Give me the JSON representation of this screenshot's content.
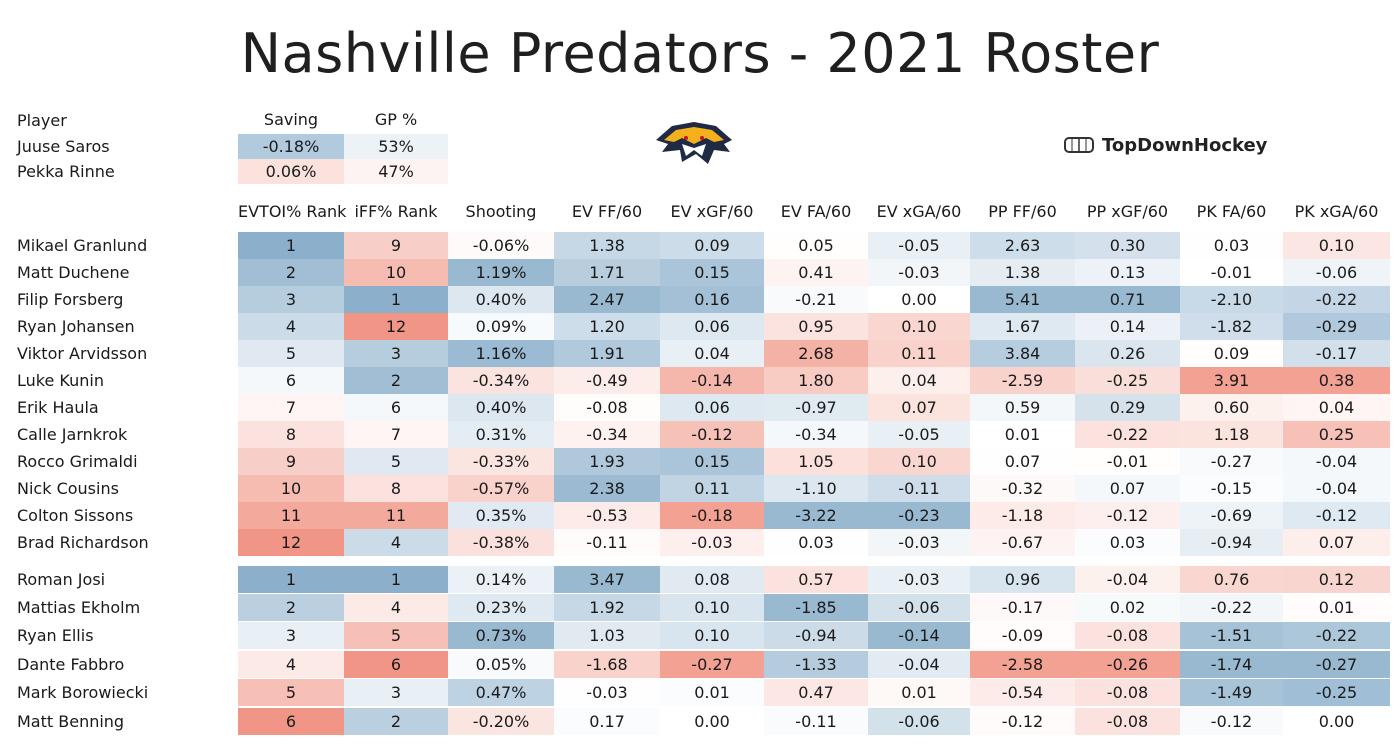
{
  "title": "Nashville Predators - 2021 Roster",
  "brand": "TopDownHockey",
  "logo_icon": "predators-logo-icon",
  "brand_icon": "rink-icon",
  "goalies": {
    "headers": {
      "player": "Player",
      "saving": "Saving",
      "gp": "GP %"
    },
    "rows": [
      {
        "name": "Juuse Saros",
        "saving": "-0.18%",
        "gp": "53%"
      },
      {
        "name": "Pekka Rinne",
        "saving": "0.06%",
        "gp": "47%"
      }
    ]
  },
  "columns": [
    "EVTOI% Rank",
    "iFF% Rank",
    "Shooting",
    "EV FF/60",
    "EV xGF/60",
    "EV FA/60",
    "EV xGA/60",
    "PP FF/60",
    "PP xGF/60",
    "PK FA/60",
    "PK xGA/60"
  ],
  "forwards": [
    {
      "name": "Mikael Granlund",
      "v": [
        "1",
        "9",
        "-0.06%",
        "1.38",
        "0.09",
        "0.05",
        "-0.05",
        "2.63",
        "0.30",
        "0.03",
        "0.10"
      ]
    },
    {
      "name": "Matt Duchene",
      "v": [
        "2",
        "10",
        "1.19%",
        "1.71",
        "0.15",
        "0.41",
        "-0.03",
        "1.38",
        "0.13",
        "-0.01",
        "-0.06"
      ]
    },
    {
      "name": "Filip Forsberg",
      "v": [
        "3",
        "1",
        "0.40%",
        "2.47",
        "0.16",
        "-0.21",
        "0.00",
        "5.41",
        "0.71",
        "-2.10",
        "-0.22"
      ]
    },
    {
      "name": "Ryan Johansen",
      "v": [
        "4",
        "12",
        "0.09%",
        "1.20",
        "0.06",
        "0.95",
        "0.10",
        "1.67",
        "0.14",
        "-1.82",
        "-0.29"
      ]
    },
    {
      "name": "Viktor Arvidsson",
      "v": [
        "5",
        "3",
        "1.16%",
        "1.91",
        "0.04",
        "2.68",
        "0.11",
        "3.84",
        "0.26",
        "0.09",
        "-0.17"
      ]
    },
    {
      "name": "Luke Kunin",
      "v": [
        "6",
        "2",
        "-0.34%",
        "-0.49",
        "-0.14",
        "1.80",
        "0.04",
        "-2.59",
        "-0.25",
        "3.91",
        "0.38"
      ]
    },
    {
      "name": "Erik Haula",
      "v": [
        "7",
        "6",
        "0.40%",
        "-0.08",
        "0.06",
        "-0.97",
        "0.07",
        "0.59",
        "0.29",
        "0.60",
        "0.04"
      ]
    },
    {
      "name": "Calle Jarnkrok",
      "v": [
        "8",
        "7",
        "0.31%",
        "-0.34",
        "-0.12",
        "-0.34",
        "-0.05",
        "0.01",
        "-0.22",
        "1.18",
        "0.25"
      ]
    },
    {
      "name": "Rocco Grimaldi",
      "v": [
        "9",
        "5",
        "-0.33%",
        "1.93",
        "0.15",
        "1.05",
        "0.10",
        "0.07",
        "-0.01",
        "-0.27",
        "-0.04"
      ]
    },
    {
      "name": "Nick Cousins",
      "v": [
        "10",
        "8",
        "-0.57%",
        "2.38",
        "0.11",
        "-1.10",
        "-0.11",
        "-0.32",
        "0.07",
        "-0.15",
        "-0.04"
      ]
    },
    {
      "name": "Colton Sissons",
      "v": [
        "11",
        "11",
        "0.35%",
        "-0.53",
        "-0.18",
        "-3.22",
        "-0.23",
        "-1.18",
        "-0.12",
        "-0.69",
        "-0.12"
      ]
    },
    {
      "name": "Brad Richardson",
      "v": [
        "12",
        "4",
        "-0.38%",
        "-0.11",
        "-0.03",
        "0.03",
        "-0.03",
        "-0.67",
        "0.03",
        "-0.94",
        "0.07"
      ]
    }
  ],
  "defense": [
    {
      "name": "Roman Josi",
      "v": [
        "1",
        "1",
        "0.14%",
        "3.47",
        "0.08",
        "0.57",
        "-0.03",
        "0.96",
        "-0.04",
        "0.76",
        "0.12"
      ]
    },
    {
      "name": "Mattias Ekholm",
      "v": [
        "2",
        "4",
        "0.23%",
        "1.92",
        "0.10",
        "-1.85",
        "-0.06",
        "-0.17",
        "0.02",
        "-0.22",
        "0.01"
      ]
    },
    {
      "name": "Ryan Ellis",
      "v": [
        "3",
        "5",
        "0.73%",
        "1.03",
        "0.10",
        "-0.94",
        "-0.14",
        "-0.09",
        "-0.08",
        "-1.51",
        "-0.22"
      ]
    },
    {
      "name": "Dante Fabbro",
      "v": [
        "4",
        "6",
        "0.05%",
        "-1.68",
        "-0.27",
        "-1.33",
        "-0.04",
        "-2.58",
        "-0.26",
        "-1.74",
        "-0.27"
      ]
    },
    {
      "name": "Mark Borowiecki",
      "v": [
        "5",
        "3",
        "0.47%",
        "-0.03",
        "0.01",
        "0.47",
        "0.01",
        "-0.54",
        "-0.08",
        "-1.49",
        "-0.25"
      ]
    },
    {
      "name": "Matt Benning",
      "v": [
        "6",
        "2",
        "-0.20%",
        "0.17",
        "0.00",
        "-0.11",
        "-0.06",
        "-0.12",
        "-0.08",
        "-0.12",
        "0.00"
      ]
    }
  ],
  "colors": {
    "best": "#7fa7c6",
    "neutral": "#ffffff",
    "worst": "#ef8a78"
  }
}
